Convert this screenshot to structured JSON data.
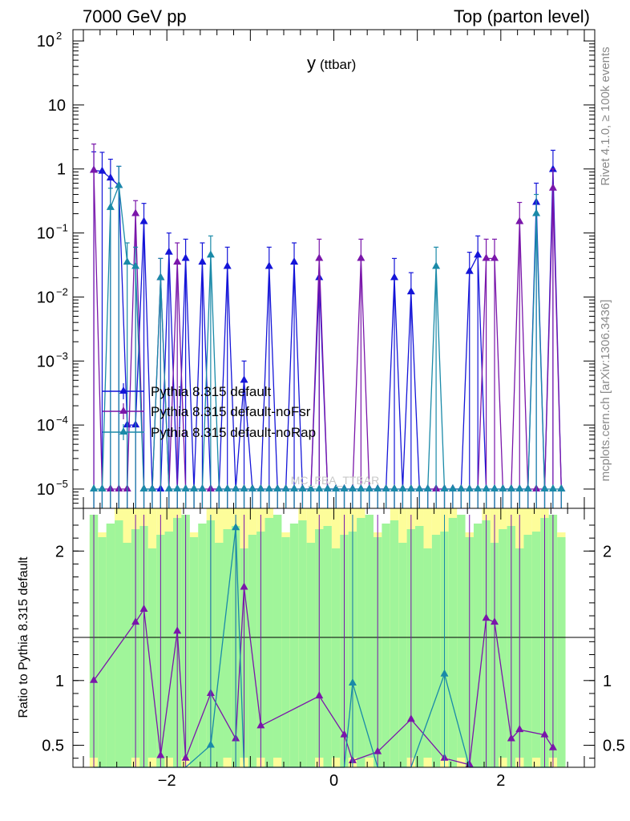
{
  "header": {
    "left_title": "7000 GeV pp",
    "right_title": "Top (parton level)"
  },
  "side_text": {
    "rivet": "Rivet 4.1.0, ≥ 100k events",
    "mcplots": "mcplots.cern.ch [arXiv:1306.3436]"
  },
  "chart_data": [
    {
      "type": "line",
      "panel": "main",
      "title": "y",
      "title_sub": "(ttbar)",
      "watermark": "MC_FBA_TTBAR",
      "yscale": "log",
      "xlim": [
        -3.125,
        3.125
      ],
      "ylim": [
        5e-06,
        150
      ],
      "y_ticks": [
        {
          "value": 100,
          "base": "10",
          "exp": "2"
        },
        {
          "value": 10,
          "base": "10",
          "exp": ""
        },
        {
          "value": 1,
          "base": "1",
          "exp": ""
        },
        {
          "value": 0.1,
          "base": "10",
          "exp": "−1"
        },
        {
          "value": 0.01,
          "base": "10",
          "exp": "−2"
        },
        {
          "value": 0.001,
          "base": "10",
          "exp": "−3"
        },
        {
          "value": 0.0001,
          "base": "10",
          "exp": "−4"
        },
        {
          "value": 1e-05,
          "base": "10",
          "exp": "−5"
        }
      ],
      "x": [
        -2.875,
        -2.775,
        -2.675,
        -2.575,
        -2.475,
        -2.375,
        -2.275,
        -2.175,
        -2.075,
        -1.975,
        -1.875,
        -1.775,
        -1.675,
        -1.575,
        -1.475,
        -1.375,
        -1.275,
        -1.175,
        -1.075,
        -0.975,
        -0.875,
        -0.775,
        -0.675,
        -0.575,
        -0.475,
        -0.375,
        -0.275,
        -0.175,
        -0.075,
        0.025,
        0.125,
        0.225,
        0.325,
        0.425,
        0.525,
        0.625,
        0.725,
        0.825,
        0.925,
        1.025,
        1.125,
        1.225,
        1.325,
        1.425,
        1.525,
        1.625,
        1.725,
        1.825,
        1.925,
        2.025,
        2.125,
        2.225,
        2.325,
        2.425,
        2.525,
        2.625,
        2.725
      ],
      "series": [
        {
          "name": "Pythia 8.315 default",
          "color": "#1515d8",
          "values": [
            0.95,
            0.92,
            0.72,
            0.55,
            0.0001,
            0.0001,
            0.15,
            1e-05,
            1e-05,
            0.05,
            1e-05,
            0.04,
            1e-05,
            0.035,
            1e-05,
            1e-05,
            0.03,
            1e-05,
            0.0005,
            1e-05,
            1e-05,
            0.03,
            1e-05,
            1e-05,
            0.035,
            1e-05,
            1e-05,
            0.02,
            1e-05,
            1e-05,
            1e-05,
            1e-05,
            1e-05,
            1e-05,
            1e-05,
            1e-05,
            0.02,
            1e-05,
            0.012,
            1e-05,
            1e-05,
            1e-05,
            1e-05,
            1e-05,
            1e-05,
            0.025,
            0.045,
            1e-05,
            1e-05,
            1e-05,
            1e-05,
            1e-05,
            1e-05,
            0.3,
            1e-05,
            0.98,
            1e-05
          ],
          "errors": [
            0.9,
            0.9,
            0.7,
            0.55,
            0,
            0,
            0.14,
            0,
            0,
            0.05,
            0,
            0.04,
            0,
            0.035,
            0,
            0,
            0.03,
            0,
            0.0005,
            0,
            0,
            0.03,
            0,
            0,
            0.035,
            0,
            0,
            0.02,
            0,
            0,
            0,
            0,
            0,
            0,
            0,
            0,
            0.02,
            0,
            0.012,
            0,
            0,
            0,
            0,
            0,
            0,
            0.025,
            0.045,
            0,
            0,
            0,
            0,
            0,
            0,
            0.3,
            0,
            0.98,
            0
          ]
        },
        {
          "name": "Pythia 8.315 default-noFsr",
          "color": "#7a16aa",
          "values": [
            0.95,
            1e-05,
            1e-05,
            1e-05,
            1e-05,
            0.2,
            1e-05,
            1e-05,
            0.02,
            1e-05,
            0.035,
            1e-05,
            1e-05,
            1e-05,
            1e-05,
            1e-05,
            1e-05,
            1e-05,
            1e-05,
            1e-05,
            1e-05,
            1e-05,
            1e-05,
            1e-05,
            1e-05,
            1e-05,
            1e-05,
            0.04,
            1e-05,
            1e-05,
            1e-05,
            1e-05,
            0.04,
            1e-05,
            1e-05,
            1e-05,
            1e-05,
            1e-05,
            1e-05,
            1e-05,
            1e-05,
            1e-05,
            1e-05,
            1e-05,
            1e-05,
            1e-05,
            1e-05,
            0.04,
            0.04,
            1e-05,
            1e-05,
            0.15,
            1e-05,
            1e-05,
            1e-05,
            0.5,
            1e-05
          ],
          "errors": [
            1.5,
            0,
            0,
            0,
            0,
            0.12,
            0,
            0,
            0.02,
            0,
            0.035,
            0,
            0,
            0,
            0,
            0,
            0,
            0,
            0,
            0,
            0,
            0,
            0,
            0,
            0,
            0,
            0,
            0.04,
            0,
            0,
            0,
            0,
            0.04,
            0,
            0,
            0,
            0,
            0,
            0,
            0,
            0,
            0,
            0,
            0,
            0,
            0,
            0,
            0.04,
            0.04,
            0,
            0,
            0.15,
            0,
            0,
            0,
            0.5,
            0
          ]
        },
        {
          "name": "Pythia 8.315 default-noRap",
          "color": "#1a8aa8",
          "values": [
            1e-05,
            1e-05,
            0.25,
            0.55,
            0.035,
            0.03,
            1e-05,
            1e-05,
            0.02,
            1e-05,
            1e-05,
            1e-05,
            1e-05,
            1e-05,
            0.045,
            1e-05,
            1e-05,
            1e-05,
            1e-05,
            1e-05,
            1e-05,
            1e-05,
            1e-05,
            1e-05,
            1e-05,
            1e-05,
            1e-05,
            1e-05,
            1e-05,
            1e-05,
            1e-05,
            1e-05,
            1e-05,
            1e-05,
            1e-05,
            1e-05,
            1e-05,
            1e-05,
            1e-05,
            1e-05,
            1e-05,
            0.03,
            1e-05,
            1e-05,
            1e-05,
            1e-05,
            1e-05,
            1e-05,
            1e-05,
            1e-05,
            1e-05,
            1e-05,
            1e-05,
            0.2,
            1e-05,
            1e-05,
            1e-05
          ],
          "errors": [
            0,
            0,
            0.25,
            0.55,
            0.035,
            0.03,
            0,
            0,
            0.02,
            0,
            0,
            0,
            0,
            0,
            0.045,
            0,
            0,
            0,
            0,
            0,
            0,
            0,
            0,
            0,
            0,
            0,
            0,
            0,
            0,
            0,
            0,
            0,
            0,
            0,
            0,
            0,
            0,
            0,
            0,
            0,
            0,
            0.03,
            0,
            0,
            0,
            0,
            0,
            0,
            0,
            0,
            0,
            0,
            0,
            0.2,
            0,
            0,
            0
          ]
        }
      ],
      "legend": [
        "Pythia 8.315 default",
        "Pythia 8.315 default-noFsr",
        "Pythia 8.315 default-noRap"
      ]
    },
    {
      "type": "line",
      "panel": "ratio",
      "ylabel": "Ratio to Pythia 8.315 default",
      "xlim": [
        -3.125,
        3.125
      ],
      "ylim": [
        0.33,
        2.33
      ],
      "x_ticks": [
        {
          "value": -2,
          "label": "−2"
        },
        {
          "value": 0,
          "label": "0"
        },
        {
          "value": 2,
          "label": "2"
        }
      ],
      "y_ticks": [
        {
          "value": 2,
          "label": "2"
        },
        {
          "value": 1,
          "label": "1"
        },
        {
          "value": 0.5,
          "label": "0.5"
        }
      ],
      "band_colors": {
        "inner": "#a0f59a",
        "outer": "#fdfd9a"
      },
      "x": [
        -2.875,
        -2.375,
        -2.275,
        -2.075,
        -1.875,
        -1.775,
        -1.475,
        -1.175,
        -1.075,
        -0.875,
        -0.175,
        0.125,
        0.225,
        0.525,
        0.925,
        1.325,
        1.625,
        1.825,
        1.925,
        2.125,
        2.225,
        2.525,
        2.625
      ],
      "series": [
        {
          "name": "Pythia 8.315 default-noFsr",
          "color": "#7a16aa",
          "values": [
            1.0,
            1.45,
            1.55,
            0.42,
            1.38,
            0.4,
            0.9,
            0.55,
            1.72,
            0.65,
            0.88,
            0.58,
            0.38,
            0.45,
            0.7,
            0.4,
            0.35,
            1.48,
            1.45,
            0.55,
            0.62,
            0.58,
            0.48
          ]
        },
        {
          "name": "Pythia 8.315 default-noRap",
          "color": "#1a8aa8",
          "values": [
            0.3,
            0.3,
            0.3,
            0.3,
            0.3,
            0.3,
            0.5,
            2.18,
            0.3,
            0.3,
            0.3,
            0.3,
            0.98,
            0.3,
            0.3,
            1.05,
            0.3,
            0.3,
            0.3,
            0.3,
            0.3,
            0.3,
            0.3
          ]
        }
      ]
    }
  ]
}
